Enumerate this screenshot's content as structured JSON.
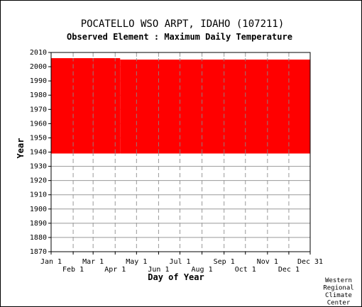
{
  "chart_data": {
    "type": "bar",
    "title": "POCATELLO WSO ARPT, IDAHO   (107211)",
    "subtitle": "Observed Element : Maximum Daily Temperature",
    "xlabel": "Day of Year",
    "ylabel": "Year",
    "credit": [
      "Western",
      "Regional",
      "Climate",
      "Center"
    ],
    "xlim": [
      1,
      365
    ],
    "ylim": [
      1870,
      2010
    ],
    "yticks": [
      1870,
      1880,
      1890,
      1900,
      1910,
      1920,
      1930,
      1940,
      1950,
      1960,
      1970,
      1980,
      1990,
      2000,
      2010
    ],
    "xticks_upper": [
      {
        "label": "Jan 1",
        "day": 1
      },
      {
        "label": "Mar 1",
        "day": 60
      },
      {
        "label": "May 1",
        "day": 121
      },
      {
        "label": "Jul 1",
        "day": 182
      },
      {
        "label": "Sep 1",
        "day": 244
      },
      {
        "label": "Nov 1",
        "day": 305
      },
      {
        "label": "Dec 31",
        "day": 365
      }
    ],
    "xticks_lower": [
      {
        "label": "Feb 1",
        "day": 32
      },
      {
        "label": "Apr 1",
        "day": 91
      },
      {
        "label": "Jun 1",
        "day": 152
      },
      {
        "label": "Aug 1",
        "day": 213
      },
      {
        "label": "Oct 1",
        "day": 274
      },
      {
        "label": "Dec 1",
        "day": 335
      }
    ],
    "grid": true,
    "bar_color": "#ff0000",
    "series": [
      {
        "start_day": 1,
        "end_day": 60,
        "start_year": 1939,
        "end_year": 2006
      },
      {
        "start_day": 60,
        "end_day": 98,
        "start_year": 1939,
        "end_year": 2006
      },
      {
        "start_day": 98,
        "end_day": 365,
        "start_year": 1939,
        "end_year": 2005
      }
    ]
  }
}
